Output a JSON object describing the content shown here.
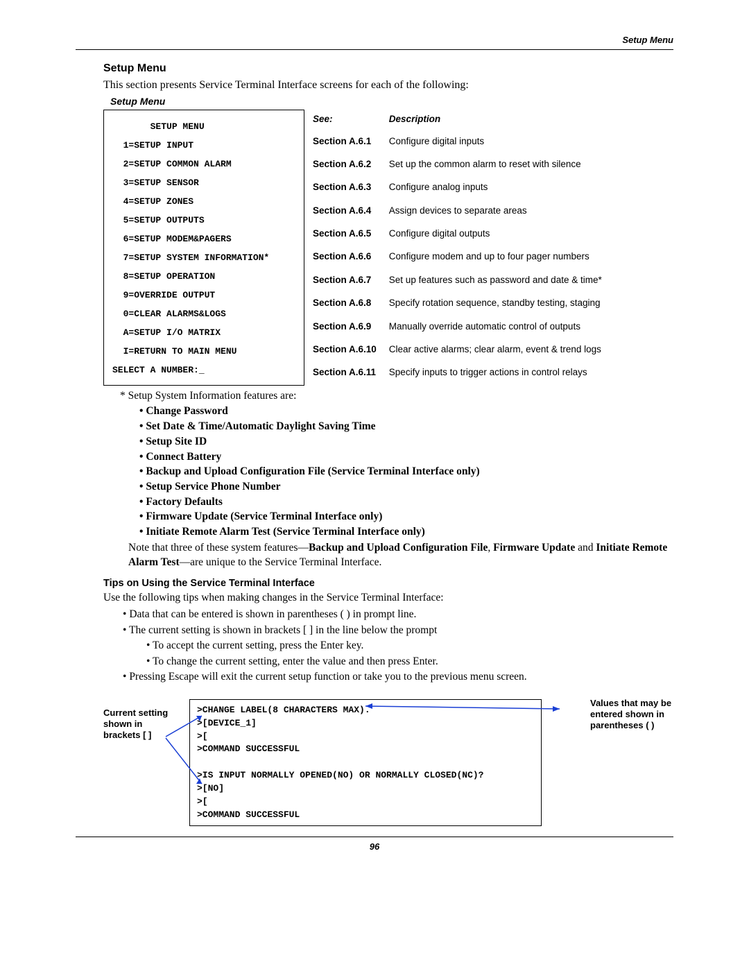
{
  "header": {
    "right": "Setup Menu"
  },
  "section": {
    "title": "Setup Menu",
    "intro": "This section presents Service Terminal Interface screens for each of the following:",
    "caption": "Setup Menu"
  },
  "terminal": {
    "title": "SETUP MENU",
    "items": [
      "1=SETUP INPUT",
      "2=SETUP COMMON ALARM",
      "3=SETUP SENSOR",
      "4=SETUP ZONES",
      "5=SETUP OUTPUTS",
      "6=SETUP MODEM&PAGERS",
      "7=SETUP SYSTEM INFORMATION*",
      "8=SETUP OPERATION",
      "9=OVERRIDE OUTPUT",
      "0=CLEAR ALARMS&LOGS",
      "A=SETUP I/O MATRIX",
      "I=RETURN TO MAIN MENU"
    ],
    "prompt": "SELECT A NUMBER:_"
  },
  "table": {
    "col_see": "See:",
    "col_desc": "Description",
    "rows": [
      {
        "sec": "Section A.6.1",
        "desc": "Configure digital inputs"
      },
      {
        "sec": "Section A.6.2",
        "desc": "Set up the common alarm to reset with silence"
      },
      {
        "sec": "Section A.6.3",
        "desc": "Configure analog inputs"
      },
      {
        "sec": "Section A.6.4",
        "desc": "Assign devices to separate areas"
      },
      {
        "sec": "Section A.6.5",
        "desc": "Configure digital outputs"
      },
      {
        "sec": "Section A.6.6",
        "desc": "Configure modem and up to four pager numbers"
      },
      {
        "sec": "Section A.6.7",
        "desc": "Set up features such as password and date & time*"
      },
      {
        "sec": "Section A.6.8",
        "desc": "Specify rotation sequence, standby testing, staging"
      },
      {
        "sec": "Section A.6.9",
        "desc": "Manually override automatic control of outputs"
      },
      {
        "sec": "Section A.6.10",
        "desc": "Clear active alarms; clear alarm, event & trend logs"
      },
      {
        "sec": "Section A.6.11",
        "desc": "Specify inputs to trigger actions in control relays"
      }
    ]
  },
  "endnote_lead": "*  Setup System Information features are:",
  "features": [
    "Change Password",
    "Set Date & Time/Automatic Daylight Saving Time",
    "Setup Site ID",
    "Connect Battery",
    "Backup and Upload Configuration File (Service Terminal Interface only)",
    "Setup Service Phone Number",
    "Factory Defaults",
    "Firmware Update (Service Terminal Interface only)",
    "Initiate Remote Alarm Test (Service Terminal Interface only)"
  ],
  "note": {
    "pre": "Note that three of these system features—",
    "b1": "Backup and Upload Configuration File",
    "mid1": ", ",
    "b2": "Firmware Update",
    "mid2": " and ",
    "b3": "Initiate Remote Alarm Test",
    "post": "—are unique to the Service Terminal Interface."
  },
  "tips": {
    "title": "Tips on Using the Service Terminal Interface",
    "intro": "Use the following tips when making changes in the Service Terminal Interface:",
    "items": [
      "Data that can be entered is shown in parentheses ( ) in prompt line.",
      "The current setting is shown in brackets [ ] in the line below the prompt",
      "Pressing Escape will exit the current setup function or take you to the previous menu screen."
    ],
    "sub": [
      "To accept the current setting, press the Enter key.",
      "To change the current setting, enter the value and then press Enter."
    ]
  },
  "example": {
    "lines": [
      ">CHANGE LABEL(8 CHARACTERS MAX).",
      ">[DEVICE_1]",
      ">[",
      ">COMMAND SUCCESSFUL",
      "",
      ">IS INPUT NORMALLY OPENED(NO) OR NORMALLY CLOSED(NC)?",
      ">[NO]",
      ">[",
      ">COMMAND SUCCESSFUL"
    ],
    "left_label": "Current setting shown in brackets [ ]",
    "right_label": "Values that may be entered shown in parentheses ( )"
  },
  "page_number": "96",
  "colors": {
    "arrow": "#1a3fd4"
  }
}
